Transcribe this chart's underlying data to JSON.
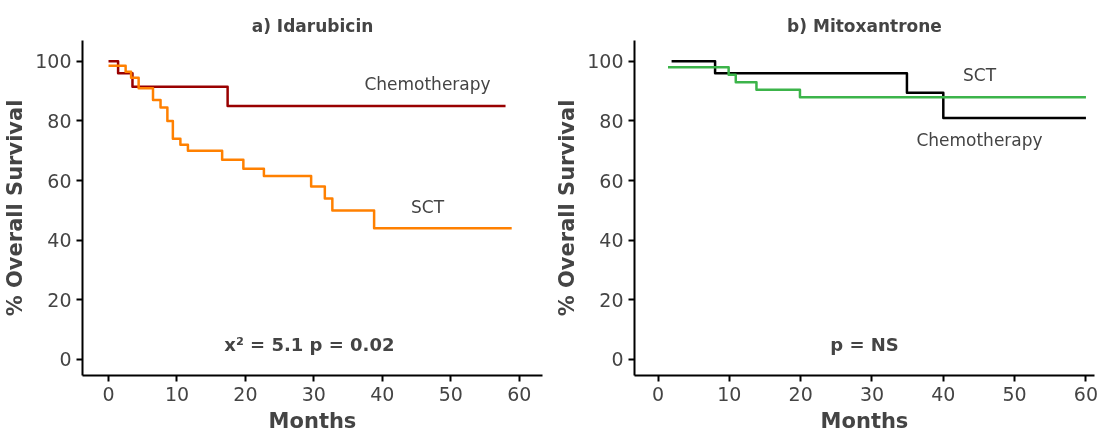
{
  "chart_data": [
    {
      "type": "step",
      "title": "a) Idarubicin",
      "xlabel": "Months",
      "ylabel": "% Overall Survival",
      "xlim": [
        -3.8,
        63.4
      ],
      "ylim": [
        -5.4,
        107
      ],
      "xticks": [
        0,
        10,
        20,
        30,
        40,
        50,
        60
      ],
      "yticks": [
        0,
        20,
        40,
        60,
        80,
        100
      ],
      "grid": false,
      "legend": false,
      "series": [
        {
          "name": "Chemotherapy",
          "color": "#990000",
          "x": [
            0,
            1.4,
            3.5,
            17.4,
            58
          ],
          "values": [
            100,
            96,
            91.5,
            85,
            85
          ]
        },
        {
          "name": "SCT",
          "color": "#ff8000",
          "x": [
            0,
            2.5,
            3.3,
            4.4,
            6.5,
            7.6,
            8.6,
            9.4,
            10.5,
            11.6,
            16.6,
            19.7,
            22.7,
            29.6,
            31.6,
            32.7,
            38.8,
            58.9
          ],
          "values": [
            98.5,
            96.5,
            94.5,
            91,
            87,
            84.5,
            80,
            74,
            72,
            70,
            67,
            64,
            61.5,
            58,
            54,
            50,
            44,
            44
          ]
        }
      ],
      "annotations": [
        "x² = 5.1  p = 0.02"
      ]
    },
    {
      "type": "step",
      "title": "b) Mitoxantrone",
      "xlabel": "Months",
      "ylabel": "% Overall Survival",
      "xlim": [
        -3.3,
        61.2
      ],
      "ylim": [
        -5.4,
        107
      ],
      "xticks": [
        0,
        10,
        20,
        30,
        40,
        50,
        60
      ],
      "yticks": [
        0,
        20,
        40,
        60,
        80,
        100
      ],
      "grid": false,
      "legend": false,
      "series": [
        {
          "name": "Chemotherapy",
          "color": "#000000",
          "x": [
            1.9,
            8,
            34.9,
            40,
            60
          ],
          "values": [
            100,
            96,
            89.5,
            81,
            81
          ]
        },
        {
          "name": "SCT",
          "color": "#3cb44a",
          "x": [
            1.4,
            9.9,
            10.9,
            13.8,
            19.9,
            60
          ],
          "values": [
            98,
            95.5,
            93,
            90.5,
            88,
            88
          ]
        }
      ],
      "annotations": [
        "p = NS"
      ]
    }
  ]
}
